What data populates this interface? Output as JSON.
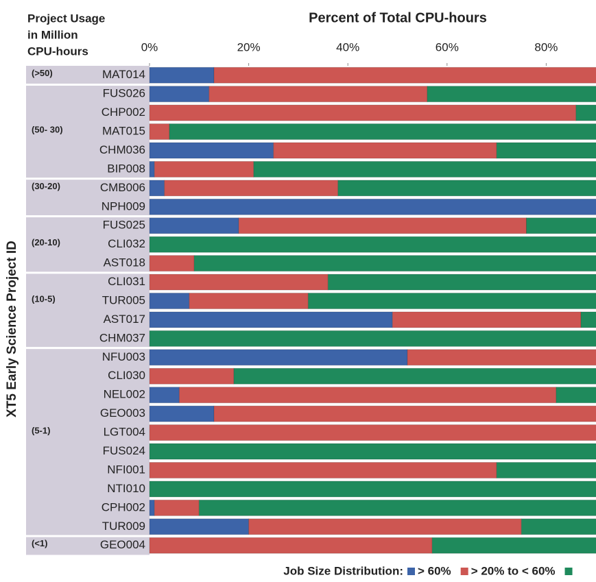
{
  "chart_data": {
    "type": "stacked-barh",
    "title": "Percent of Total CPU-hours",
    "group_axis_label": [
      "Project Usage",
      "in Million",
      "CPU-hours"
    ],
    "ylabel": "XT5 Early Science Project ID",
    "legend_title": "Job Size Distribution:",
    "groups": [
      {
        "label": "(>50)",
        "categories": [
          "MAT014"
        ]
      },
      {
        "label": "(50- 30)",
        "categories": [
          "FUS026",
          "CHP002",
          "MAT015",
          "CHM036",
          "BIP008"
        ]
      },
      {
        "label": "(30-20)",
        "categories": [
          "CMB006",
          "NPH009"
        ]
      },
      {
        "label": "(20-10)",
        "categories": [
          "FUS025",
          "CLI032",
          "AST018"
        ]
      },
      {
        "label": "(10-5)",
        "categories": [
          "CLI031",
          "TUR005",
          "AST017",
          "CHM037"
        ]
      },
      {
        "label": "(5-1)",
        "categories": [
          "NFU003",
          "CLI030",
          "NEL002",
          "GEO003",
          "LGT004",
          "FUS024",
          "NFI001",
          "NTI010",
          "CPH002",
          "TUR009"
        ]
      },
      {
        "label": "(<1)",
        "categories": [
          "GEO004"
        ]
      }
    ],
    "series": [
      {
        "name": "> 60%",
        "color": "#3d64a8",
        "values": [
          13,
          12,
          0,
          0,
          25,
          1,
          3,
          100,
          18,
          0,
          0,
          0,
          8,
          49,
          0,
          52,
          0,
          6,
          13,
          0,
          0,
          0,
          0,
          1,
          20,
          0
        ]
      },
      {
        "name": "> 20% to < 60%",
        "color": "#cd5652",
        "values": [
          87,
          44,
          86,
          4,
          45,
          20,
          35,
          0,
          58,
          0,
          9,
          36,
          24,
          38,
          0,
          48,
          17,
          76,
          87,
          100,
          0,
          70,
          0,
          9,
          55,
          57
        ]
      },
      {
        "color": "#1f8a5c",
        "values": [
          0,
          44,
          14,
          96,
          30,
          79,
          62,
          0,
          24,
          100,
          91,
          64,
          68,
          13,
          100,
          0,
          83,
          18,
          0,
          0,
          100,
          30,
          100,
          90,
          25,
          43
        ]
      }
    ],
    "xlim": [
      0,
      90
    ],
    "xticks": [
      {
        "value": 0,
        "label": "0%"
      },
      {
        "value": 20,
        "label": "20%"
      },
      {
        "value": 40,
        "label": "40%"
      },
      {
        "value": 60,
        "label": "60%"
      },
      {
        "value": 80,
        "label": "80%"
      }
    ]
  }
}
